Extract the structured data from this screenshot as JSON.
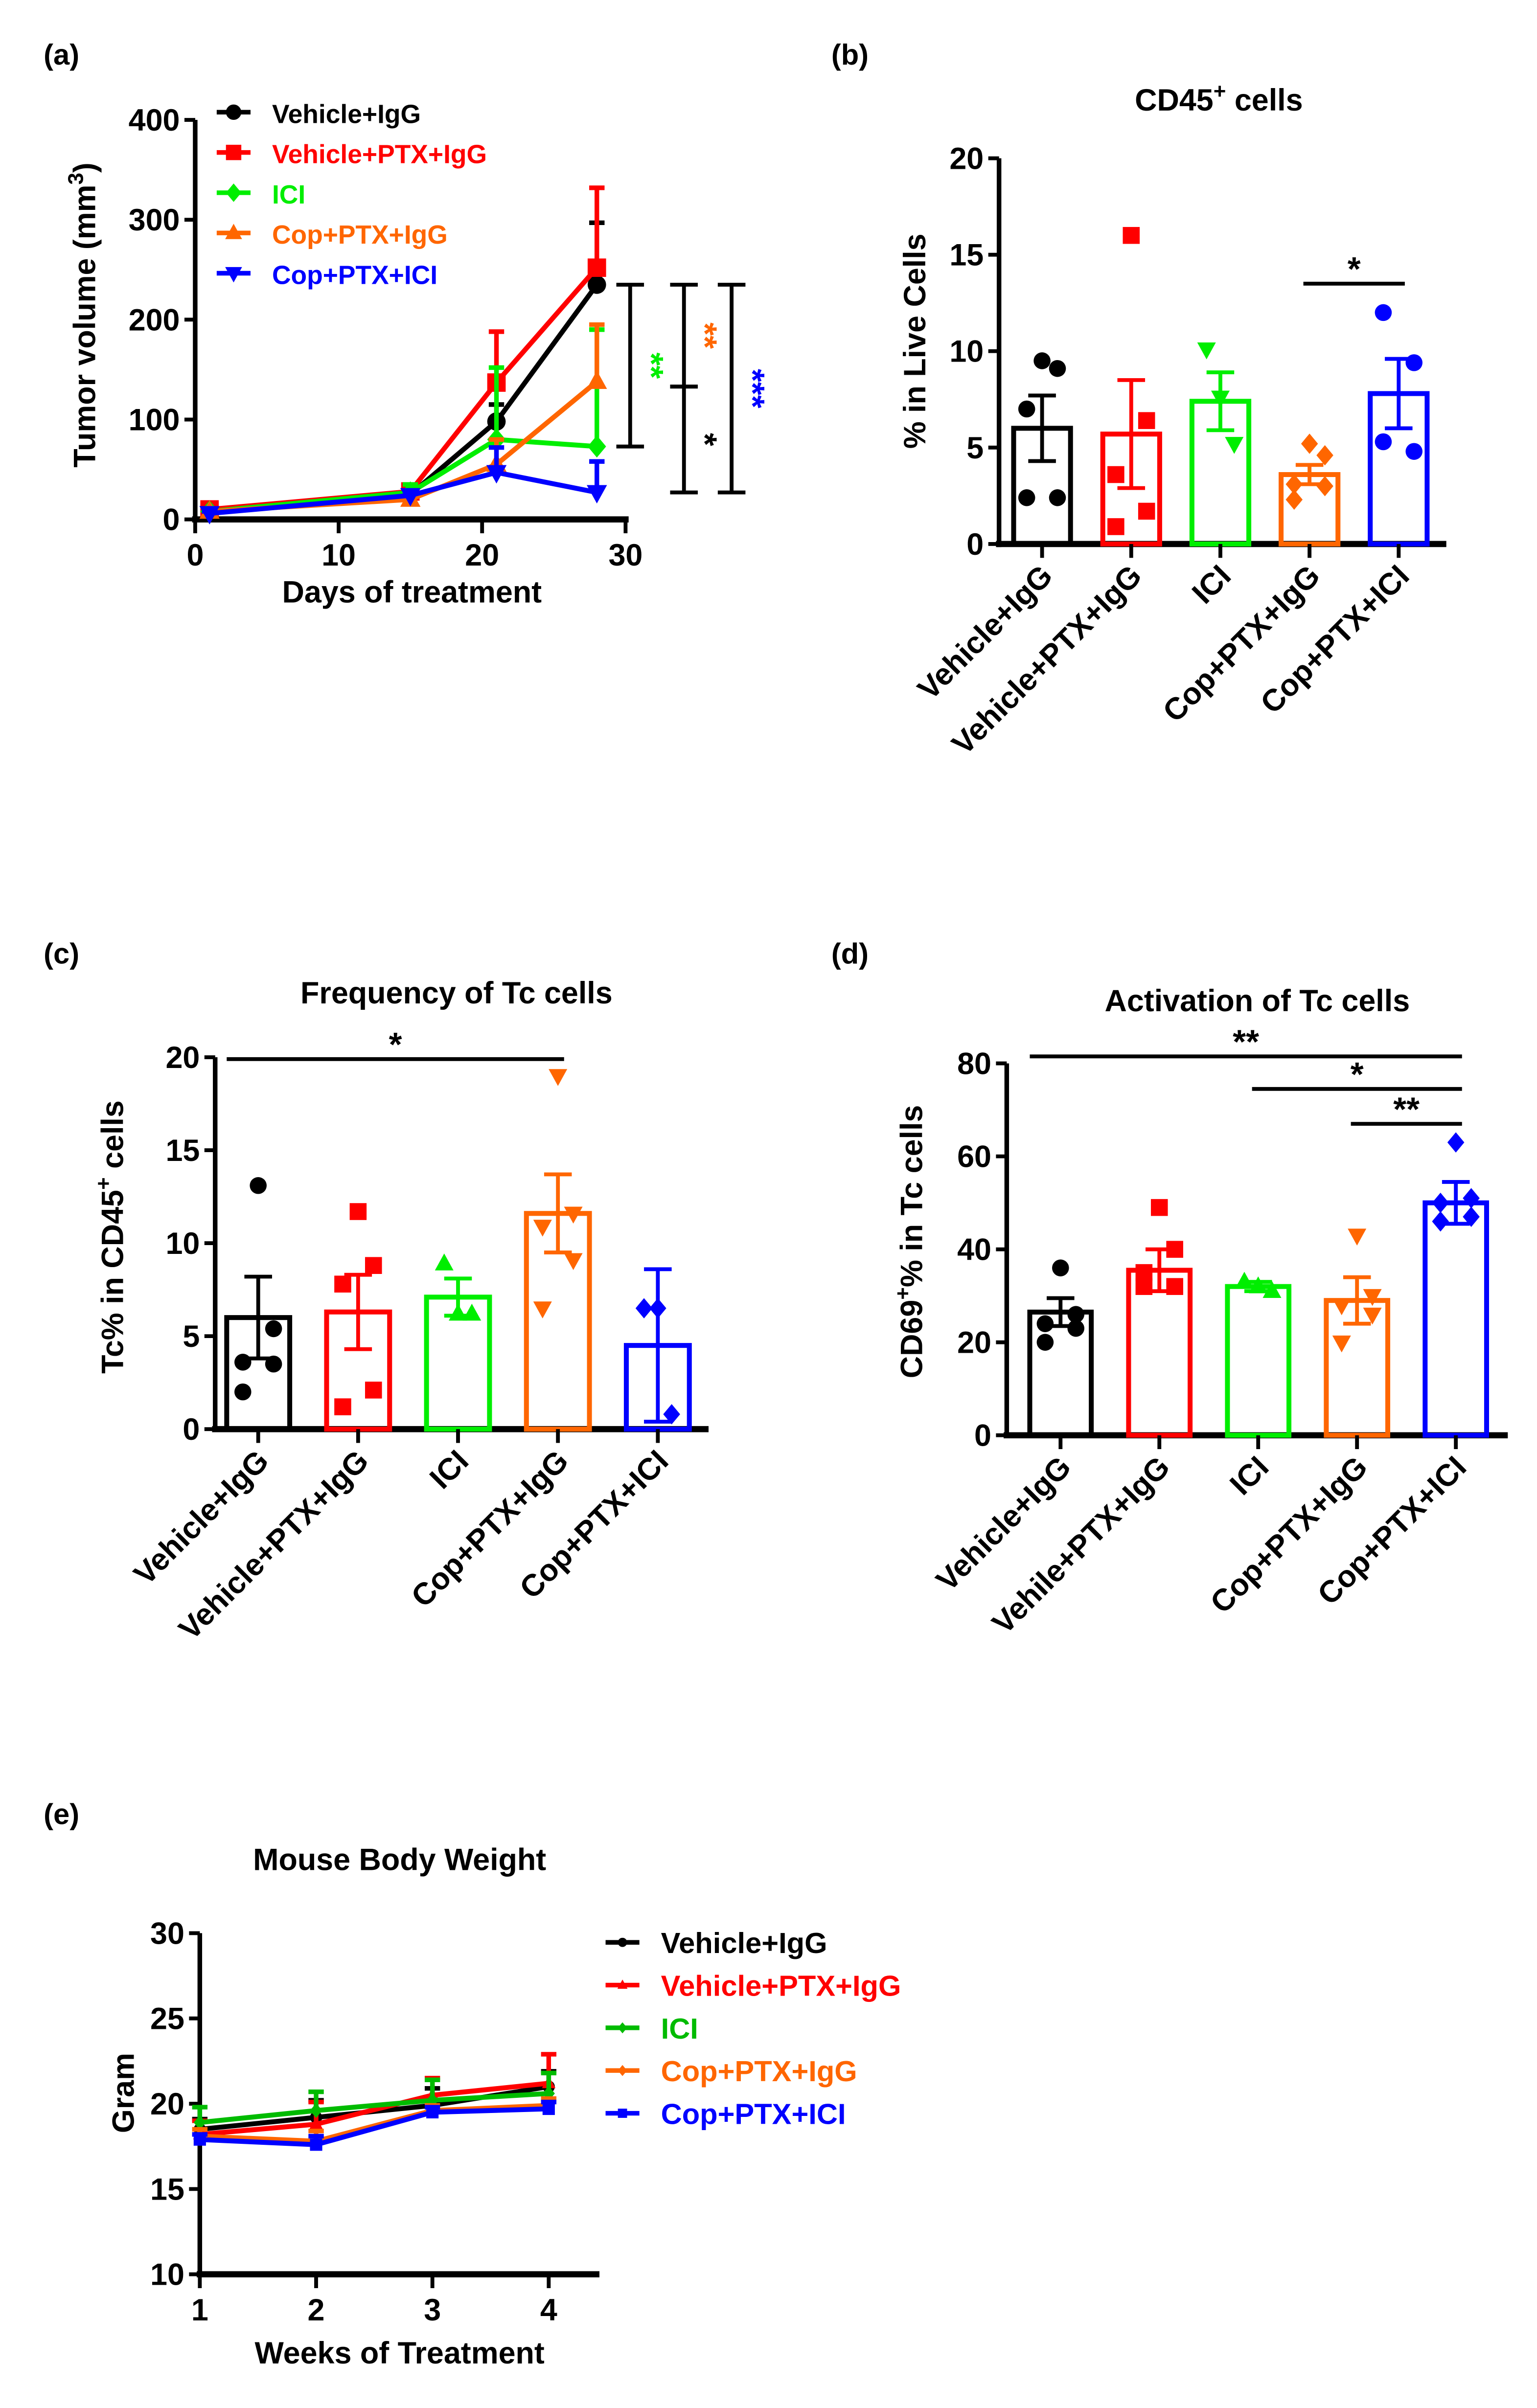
{
  "chart_data": [
    {
      "panel": "(a)",
      "type": "line",
      "title": "",
      "xlabel": "Days of treatment",
      "ylabel": "Tumor volume (mm3)",
      "xlim": [
        0,
        30
      ],
      "ylim": [
        0,
        400
      ],
      "xticks": [
        0,
        10,
        20,
        30
      ],
      "yticks": [
        0,
        100,
        200,
        300,
        400
      ],
      "x": [
        1,
        15,
        21,
        28
      ],
      "legend_position": "top-left",
      "series": [
        {
          "name": "Vehicle+IgG",
          "color": "#000000",
          "marker": "circle",
          "values": [
            8,
            25,
            98,
            235
          ],
          "err_upper": [
            10,
            28,
            115,
            297
          ]
        },
        {
          "name": "Vehicle+PTX+IgG",
          "color": "#ff0000",
          "marker": "square",
          "values": [
            10,
            28,
            137,
            252
          ],
          "err_upper": [
            12,
            31,
            188,
            332
          ]
        },
        {
          "name": "ICI",
          "color": "#00ee00",
          "marker": "diamond",
          "values": [
            8,
            27,
            80,
            73
          ],
          "err_upper": [
            10,
            35,
            152,
            190
          ]
        },
        {
          "name": "Cop+PTX+IgG",
          "color": "#ff6600",
          "marker": "triangle-up",
          "values": [
            8,
            20,
            55,
            138
          ],
          "err_upper": [
            10,
            23,
            80,
            195
          ]
        },
        {
          "name": "Cop+PTX+ICI",
          "color": "#0000ff",
          "marker": "triangle-down",
          "values": [
            6,
            24,
            47,
            27
          ],
          "err_upper": [
            8,
            27,
            72,
            58
          ]
        }
      ],
      "significance": [
        {
          "from": 235,
          "to": 73,
          "label": "**",
          "color": "#00ee00"
        },
        {
          "from": 235,
          "to": 133,
          "label": "**",
          "color": "#ff6600"
        },
        {
          "from": 133,
          "to": 27,
          "label": "*",
          "color": "#000000"
        },
        {
          "from": 235,
          "to": 27,
          "label": "***",
          "color": "#0000ff"
        }
      ]
    },
    {
      "panel": "(b)",
      "type": "bar",
      "title": "CD45+ cells",
      "ylabel": "% in Live Cells",
      "ylim": [
        0,
        20
      ],
      "yticks": [
        0,
        5,
        10,
        15,
        20
      ],
      "categories": [
        "Vehicle+IgG",
        "Vehicle+PTX+IgG",
        "ICI",
        "Cop+PTX+IgG",
        "Cop+PTX+ICI"
      ],
      "colors": [
        "#000000",
        "#ff0000",
        "#00ee00",
        "#ff6600",
        "#0000ff"
      ],
      "markers": [
        "circle",
        "square",
        "triangle-down",
        "diamond",
        "circle"
      ],
      "values": [
        6.0,
        5.7,
        7.4,
        3.6,
        7.8
      ],
      "sem": [
        1.7,
        2.8,
        1.5,
        0.5,
        1.8
      ],
      "points": [
        [
          9.5,
          9.1,
          7.0,
          2.4,
          2.4
        ],
        [
          16.0,
          6.4,
          3.6,
          1.7,
          0.9
        ],
        [
          10.1,
          7.6,
          5.2
        ],
        [
          5.2,
          4.6,
          3.1,
          3.0,
          2.3
        ],
        [
          12.0,
          9.4,
          5.3,
          4.8
        ]
      ],
      "significance": [
        {
          "a": 3,
          "b": 4,
          "level": 13.5,
          "label": "*"
        }
      ]
    },
    {
      "panel": "(c)",
      "type": "bar",
      "title": "Frequency of Tc cells",
      "ylabel": "Tc% in CD45+ cells",
      "ylim": [
        0,
        20
      ],
      "yticks": [
        0,
        5,
        10,
        15,
        20
      ],
      "categories": [
        "Vehicle+IgG",
        "Vehicle+PTX+IgG",
        "ICI",
        "Cop+PTX+IgG",
        "Cop+PTX+ICI"
      ],
      "colors": [
        "#000000",
        "#ff0000",
        "#00ee00",
        "#ff6600",
        "#0000ff"
      ],
      "markers": [
        "circle",
        "square",
        "triangle-up",
        "triangle-down",
        "diamond"
      ],
      "values": [
        6.0,
        6.3,
        7.1,
        11.6,
        4.5
      ],
      "sem": [
        2.2,
        2.0,
        1.0,
        2.1,
        4.1
      ],
      "points": [
        [
          13.1,
          5.4,
          3.6,
          3.5,
          2.0
        ],
        [
          11.7,
          8.8,
          7.8,
          2.1,
          1.2
        ],
        [
          8.9,
          6.2,
          6.2
        ],
        [
          19.0,
          11.6,
          10.9,
          9.1,
          6.5
        ],
        [
          6.5,
          6.5,
          0.8
        ]
      ],
      "significance": [
        {
          "a": 0,
          "b": 3,
          "level": 19.9,
          "label": "*"
        }
      ]
    },
    {
      "panel": "(d)",
      "type": "bar",
      "title": "Activation of Tc cells",
      "ylabel": "CD69+% in Tc cells",
      "ylim": [
        0,
        80
      ],
      "yticks": [
        0,
        20,
        40,
        60,
        80
      ],
      "categories": [
        "Vehicle+IgG",
        "Vehile+PTX+IgG",
        "ICI",
        "Cop+PTX+IgG",
        "Cop+PTX+ICI"
      ],
      "colors": [
        "#000000",
        "#ff0000",
        "#00ee00",
        "#ff6600",
        "#0000ff"
      ],
      "markers": [
        "circle",
        "square",
        "triangle-up",
        "triangle-down",
        "diamond"
      ],
      "values": [
        26.5,
        35.5,
        32.0,
        29.0,
        50.0
      ],
      "sem": [
        3.0,
        4.5,
        1.0,
        5.0,
        4.5
      ],
      "points": [
        [
          36,
          26,
          24,
          23,
          20
        ],
        [
          49,
          40,
          35,
          32,
          32
        ],
        [
          33,
          32,
          31
        ],
        [
          43,
          30,
          28,
          26,
          20
        ],
        [
          63,
          51,
          50,
          47,
          46
        ]
      ],
      "significance": [
        {
          "a": 0,
          "b": 4,
          "level": 81.5,
          "label": "**"
        },
        {
          "a": 2,
          "b": 4,
          "level": 74.5,
          "label": "*"
        },
        {
          "a": 3,
          "b": 4,
          "level": 67,
          "label": "**"
        }
      ]
    },
    {
      "panel": "(e)",
      "type": "line",
      "title": "Mouse Body Weight",
      "xlabel": "Weeks of Treatment",
      "ylabel": "Gram",
      "ylim": [
        10,
        30
      ],
      "yticks": [
        10,
        15,
        20,
        25,
        30
      ],
      "x": [
        1,
        2,
        3,
        4
      ],
      "legend_position": "right",
      "series": [
        {
          "name": "Vehicle+IgG",
          "color": "#000000",
          "marker": "circle",
          "values": [
            18.5,
            19.2,
            19.9,
            21.0
          ],
          "err_upper": [
            19.1,
            20.2,
            20.9,
            21.9
          ]
        },
        {
          "name": "Vehicle+PTX+IgG",
          "color": "#ff0000",
          "marker": "triangle-up",
          "values": [
            18.2,
            18.8,
            20.5,
            21.2
          ],
          "err_upper": [
            19.0,
            20.1,
            21.5,
            22.9
          ]
        },
        {
          "name": "ICI",
          "color": "#00bb00",
          "marker": "diamond",
          "values": [
            18.9,
            19.6,
            20.2,
            20.6
          ],
          "err_upper": [
            19.8,
            20.7,
            21.4,
            21.8
          ]
        },
        {
          "name": "Cop+PTX+IgG",
          "color": "#ff6600",
          "marker": "diamond",
          "values": [
            18.1,
            17.8,
            19.6,
            19.9
          ],
          "err_upper": [
            18.5,
            18.4,
            19.9,
            20.3
          ]
        },
        {
          "name": "Cop+PTX+ICI",
          "color": "#0000ff",
          "marker": "square",
          "values": [
            17.9,
            17.6,
            19.5,
            19.7
          ],
          "err_upper": [
            18.2,
            18.1,
            19.8,
            20.1
          ]
        }
      ]
    }
  ]
}
